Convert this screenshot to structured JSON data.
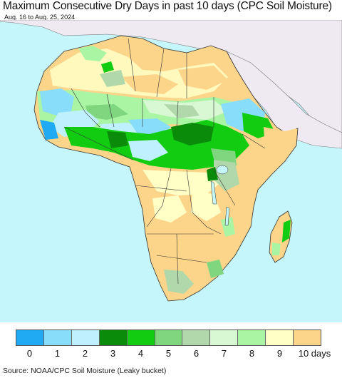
{
  "title": "Maximum Consecutive Dry Days in past 10 days (CPC Soil Moisture)",
  "subtitle": "Aug. 16 to Aug. 25, 2024",
  "source": "Source: NOAA/CPC Soil Moisture (Leaky bucket)",
  "colors": {
    "ocean": "#c4f6fb",
    "outside_land": "#efeaf2",
    "border": "#333333"
  },
  "legend": {
    "items": [
      {
        "label": "0",
        "color": "#1faaf3"
      },
      {
        "label": "1",
        "color": "#88defa"
      },
      {
        "label": "2",
        "color": "#bff0fd"
      },
      {
        "label": "3",
        "color": "#0a8c0a"
      },
      {
        "label": "4",
        "color": "#12cc12"
      },
      {
        "label": "5",
        "color": "#7fd67f"
      },
      {
        "label": "6",
        "color": "#b1d8aa"
      },
      {
        "label": "7",
        "color": "#d8f7d3"
      },
      {
        "label": "8",
        "color": "#a9f5a3"
      },
      {
        "label": "9",
        "color": "#ffffc6"
      },
      {
        "label": "10 days",
        "color": "#fcd58a"
      }
    ]
  }
}
